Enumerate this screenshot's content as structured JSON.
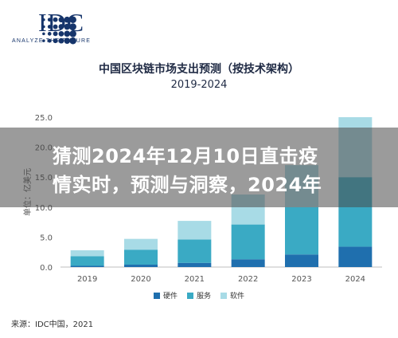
{
  "logo": {
    "text": "IDC",
    "tagline": "ANALYZE THE FUTURE",
    "color": "#16356b"
  },
  "banner": {
    "line1": "猜测2024年12月10日直击疫",
    "line2": "情实时，预测与洞察，2024年"
  },
  "source": "来源：IDC中国，2021",
  "chart_data": {
    "type": "bar",
    "stacked": true,
    "title": "中国区块链市场支出预测（按技术架构）",
    "subtitle": "2019-2024",
    "ylabel": "单位：亿美元",
    "xlabel": "",
    "categories": [
      "2019",
      "2020",
      "2021",
      "2022",
      "2023",
      "2024"
    ],
    "ylim": [
      0,
      25
    ],
    "yticks": [
      "0.0",
      "5.0",
      "10.0",
      "15.0",
      "20.0",
      "25.0"
    ],
    "grid": false,
    "legend_position": "bottom",
    "series": [
      {
        "name": "硬件",
        "color": "#1f6fae",
        "values": [
          0.2,
          0.4,
          0.7,
          1.3,
          2.1,
          3.4
        ]
      },
      {
        "name": "服务",
        "color": "#3aaac4",
        "values": [
          1.6,
          2.5,
          3.9,
          5.8,
          7.9,
          11.6
        ]
      },
      {
        "name": "软件",
        "color": "#a8dbe6",
        "values": [
          1.0,
          1.8,
          3.1,
          5.0,
          7.0,
          10.0
        ]
      }
    ]
  }
}
